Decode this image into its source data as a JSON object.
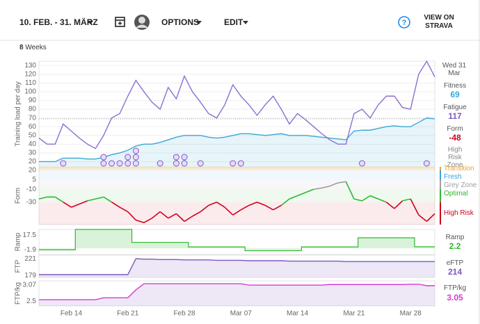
{
  "toolbar": {
    "date_range": "10. FEB. - 31. MÄRZ",
    "options": "OPTIONS",
    "edit": "EDIT",
    "strava": "VIEW ON STRAVA"
  },
  "weeks": {
    "count": 8,
    "label": "Weeks"
  },
  "summary": {
    "date": "Wed 31 Mar",
    "zone": "High Risk Zone"
  },
  "chart_data": [
    {
      "type": "line",
      "ylabel": "Training load per day",
      "ylim": [
        14,
        135
      ],
      "yticks": [
        20,
        30,
        40,
        50,
        60,
        70,
        80,
        90,
        100,
        110,
        120,
        130
      ],
      "grid": true,
      "series": [
        {
          "name": "Fitness",
          "color": "#3aa7d8",
          "values": [
            20,
            20,
            20,
            24,
            24,
            24,
            23,
            23,
            25,
            28,
            30,
            33,
            38,
            40,
            40,
            42,
            45,
            48,
            50,
            50,
            50,
            48,
            47,
            48,
            50,
            52,
            52,
            51,
            50,
            51,
            52,
            50,
            50,
            50,
            49,
            48,
            47,
            46,
            45,
            55,
            56,
            56,
            58,
            60,
            61,
            60,
            60,
            65,
            70,
            69
          ]
        },
        {
          "name": "Fatigue",
          "color": "#8a6fd1",
          "values": [
            47,
            40,
            40,
            63,
            55,
            47,
            40,
            35,
            50,
            70,
            75,
            95,
            113,
            100,
            88,
            80,
            105,
            92,
            118,
            100,
            88,
            75,
            70,
            85,
            108,
            95,
            85,
            73,
            85,
            95,
            80,
            63,
            75,
            68,
            60,
            52,
            45,
            40,
            40,
            75,
            80,
            70,
            85,
            95,
            95,
            82,
            80,
            120,
            135,
            117
          ]
        }
      ],
      "activity_counts": [
        0,
        0,
        0,
        1,
        0,
        0,
        0,
        0,
        2,
        1,
        1,
        2,
        3,
        0,
        0,
        1,
        0,
        2,
        2,
        0,
        1,
        0,
        0,
        0,
        1,
        1,
        0,
        0,
        0,
        0,
        0,
        0,
        0,
        0,
        0,
        0,
        0,
        0,
        0,
        0,
        1,
        0,
        0,
        0,
        0,
        0,
        0,
        0,
        1,
        0
      ],
      "activity_color": "#7e57c2"
    },
    {
      "type": "line",
      "ylabel": "Form",
      "ylim": [
        -65,
        25
      ],
      "yticks": [
        20,
        5,
        -10,
        -30
      ],
      "zones": [
        {
          "name": "Transition",
          "color": "#f0a020",
          "min": 20
        },
        {
          "name": "Fresh",
          "color": "#3aa0e0",
          "min": 5
        },
        {
          "name": "Grey Zone",
          "color": "#9e9e9e",
          "min": -10
        },
        {
          "name": "Optimal",
          "color": "#2db82d",
          "min": -30
        },
        {
          "name": "High Risk",
          "color": "#d0021b"
        }
      ],
      "series": [
        {
          "name": "Form",
          "color": "#d0021b",
          "values": [
            -25,
            -22,
            -22,
            -30,
            -38,
            -33,
            -28,
            -25,
            -22,
            -30,
            -38,
            -45,
            -58,
            -62,
            -55,
            -45,
            -55,
            -48,
            -60,
            -52,
            -45,
            -35,
            -30,
            -38,
            -50,
            -42,
            -35,
            -30,
            -35,
            -42,
            -35,
            -25,
            -20,
            -15,
            -10,
            -8,
            -5,
            0,
            2,
            -25,
            -28,
            -20,
            -25,
            -30,
            -40,
            -28,
            -25,
            -50,
            -60,
            -48
          ]
        }
      ]
    },
    {
      "type": "step",
      "ylabel": "Ramp",
      "ylim": [
        -8,
        25
      ],
      "yticks": [
        17.5,
        -1.9
      ],
      "series": [
        {
          "name": "Ramp",
          "color": "#2db82d",
          "values": [
            -1.9,
            -1.9,
            -1.9,
            -1.9,
            -1.9,
            25,
            25,
            25,
            25,
            25,
            25,
            25,
            8,
            8,
            8,
            8,
            8,
            8,
            8,
            2,
            2,
            2,
            2,
            2,
            2,
            2,
            -3,
            -3,
            -3,
            -3,
            -3,
            -3,
            -3,
            2,
            2,
            2,
            2,
            2,
            2,
            2,
            14,
            14,
            14,
            14,
            14,
            14,
            14,
            2.2,
            2.2,
            2.2
          ]
        }
      ]
    },
    {
      "type": "area",
      "ylabel": "FTP",
      "ylim": [
        174,
        230
      ],
      "yticks": [
        221,
        179
      ],
      "series": [
        {
          "name": "eFTP",
          "color": "#7e57c2",
          "values": [
            181,
            181,
            181,
            181,
            181,
            181,
            181,
            181,
            181,
            181,
            181,
            181,
            221,
            220,
            220,
            219,
            219,
            219,
            218,
            218,
            218,
            218,
            217,
            217,
            217,
            217,
            216,
            216,
            216,
            216,
            216,
            215,
            215,
            215,
            215,
            215,
            215,
            215,
            214,
            214,
            214,
            214,
            214,
            214,
            214,
            214,
            214,
            214,
            214,
            214
          ]
        }
      ]
    },
    {
      "type": "area",
      "ylabel": "FTP/kg",
      "ylim": [
        2.33,
        3.22
      ],
      "yticks": [
        3.07,
        2.5
      ],
      "categories": [
        null,
        null,
        null,
        null,
        "Feb 14",
        null,
        null,
        null,
        null,
        null,
        null,
        "Feb 21",
        null,
        null,
        null,
        null,
        null,
        null,
        "Feb 28",
        null,
        null,
        null,
        null,
        null,
        null,
        "Mar 07",
        null,
        null,
        null,
        null,
        null,
        null,
        "Mar 14",
        null,
        null,
        null,
        null,
        null,
        null,
        "Mar 21",
        null,
        null,
        null,
        null,
        null,
        null,
        "Mar 28",
        null,
        null,
        null
      ],
      "series": [
        {
          "name": "FTP/kg",
          "color": "#d63bd6",
          "values": [
            2.55,
            2.55,
            2.55,
            2.55,
            2.55,
            2.55,
            2.55,
            2.55,
            2.62,
            2.62,
            2.62,
            2.62,
            2.9,
            3.12,
            3.12,
            3.12,
            3.12,
            3.12,
            3.12,
            3.12,
            3.12,
            3.12,
            3.12,
            3.12,
            3.12,
            3.12,
            3.07,
            3.07,
            3.07,
            3.07,
            3.07,
            3.07,
            3.07,
            3.07,
            3.07,
            3.07,
            3.09,
            3.09,
            3.09,
            3.09,
            3.09,
            3.09,
            3.09,
            3.09,
            3.09,
            3.09,
            3.1,
            3.1,
            3.05,
            3.05
          ]
        }
      ]
    }
  ]
}
